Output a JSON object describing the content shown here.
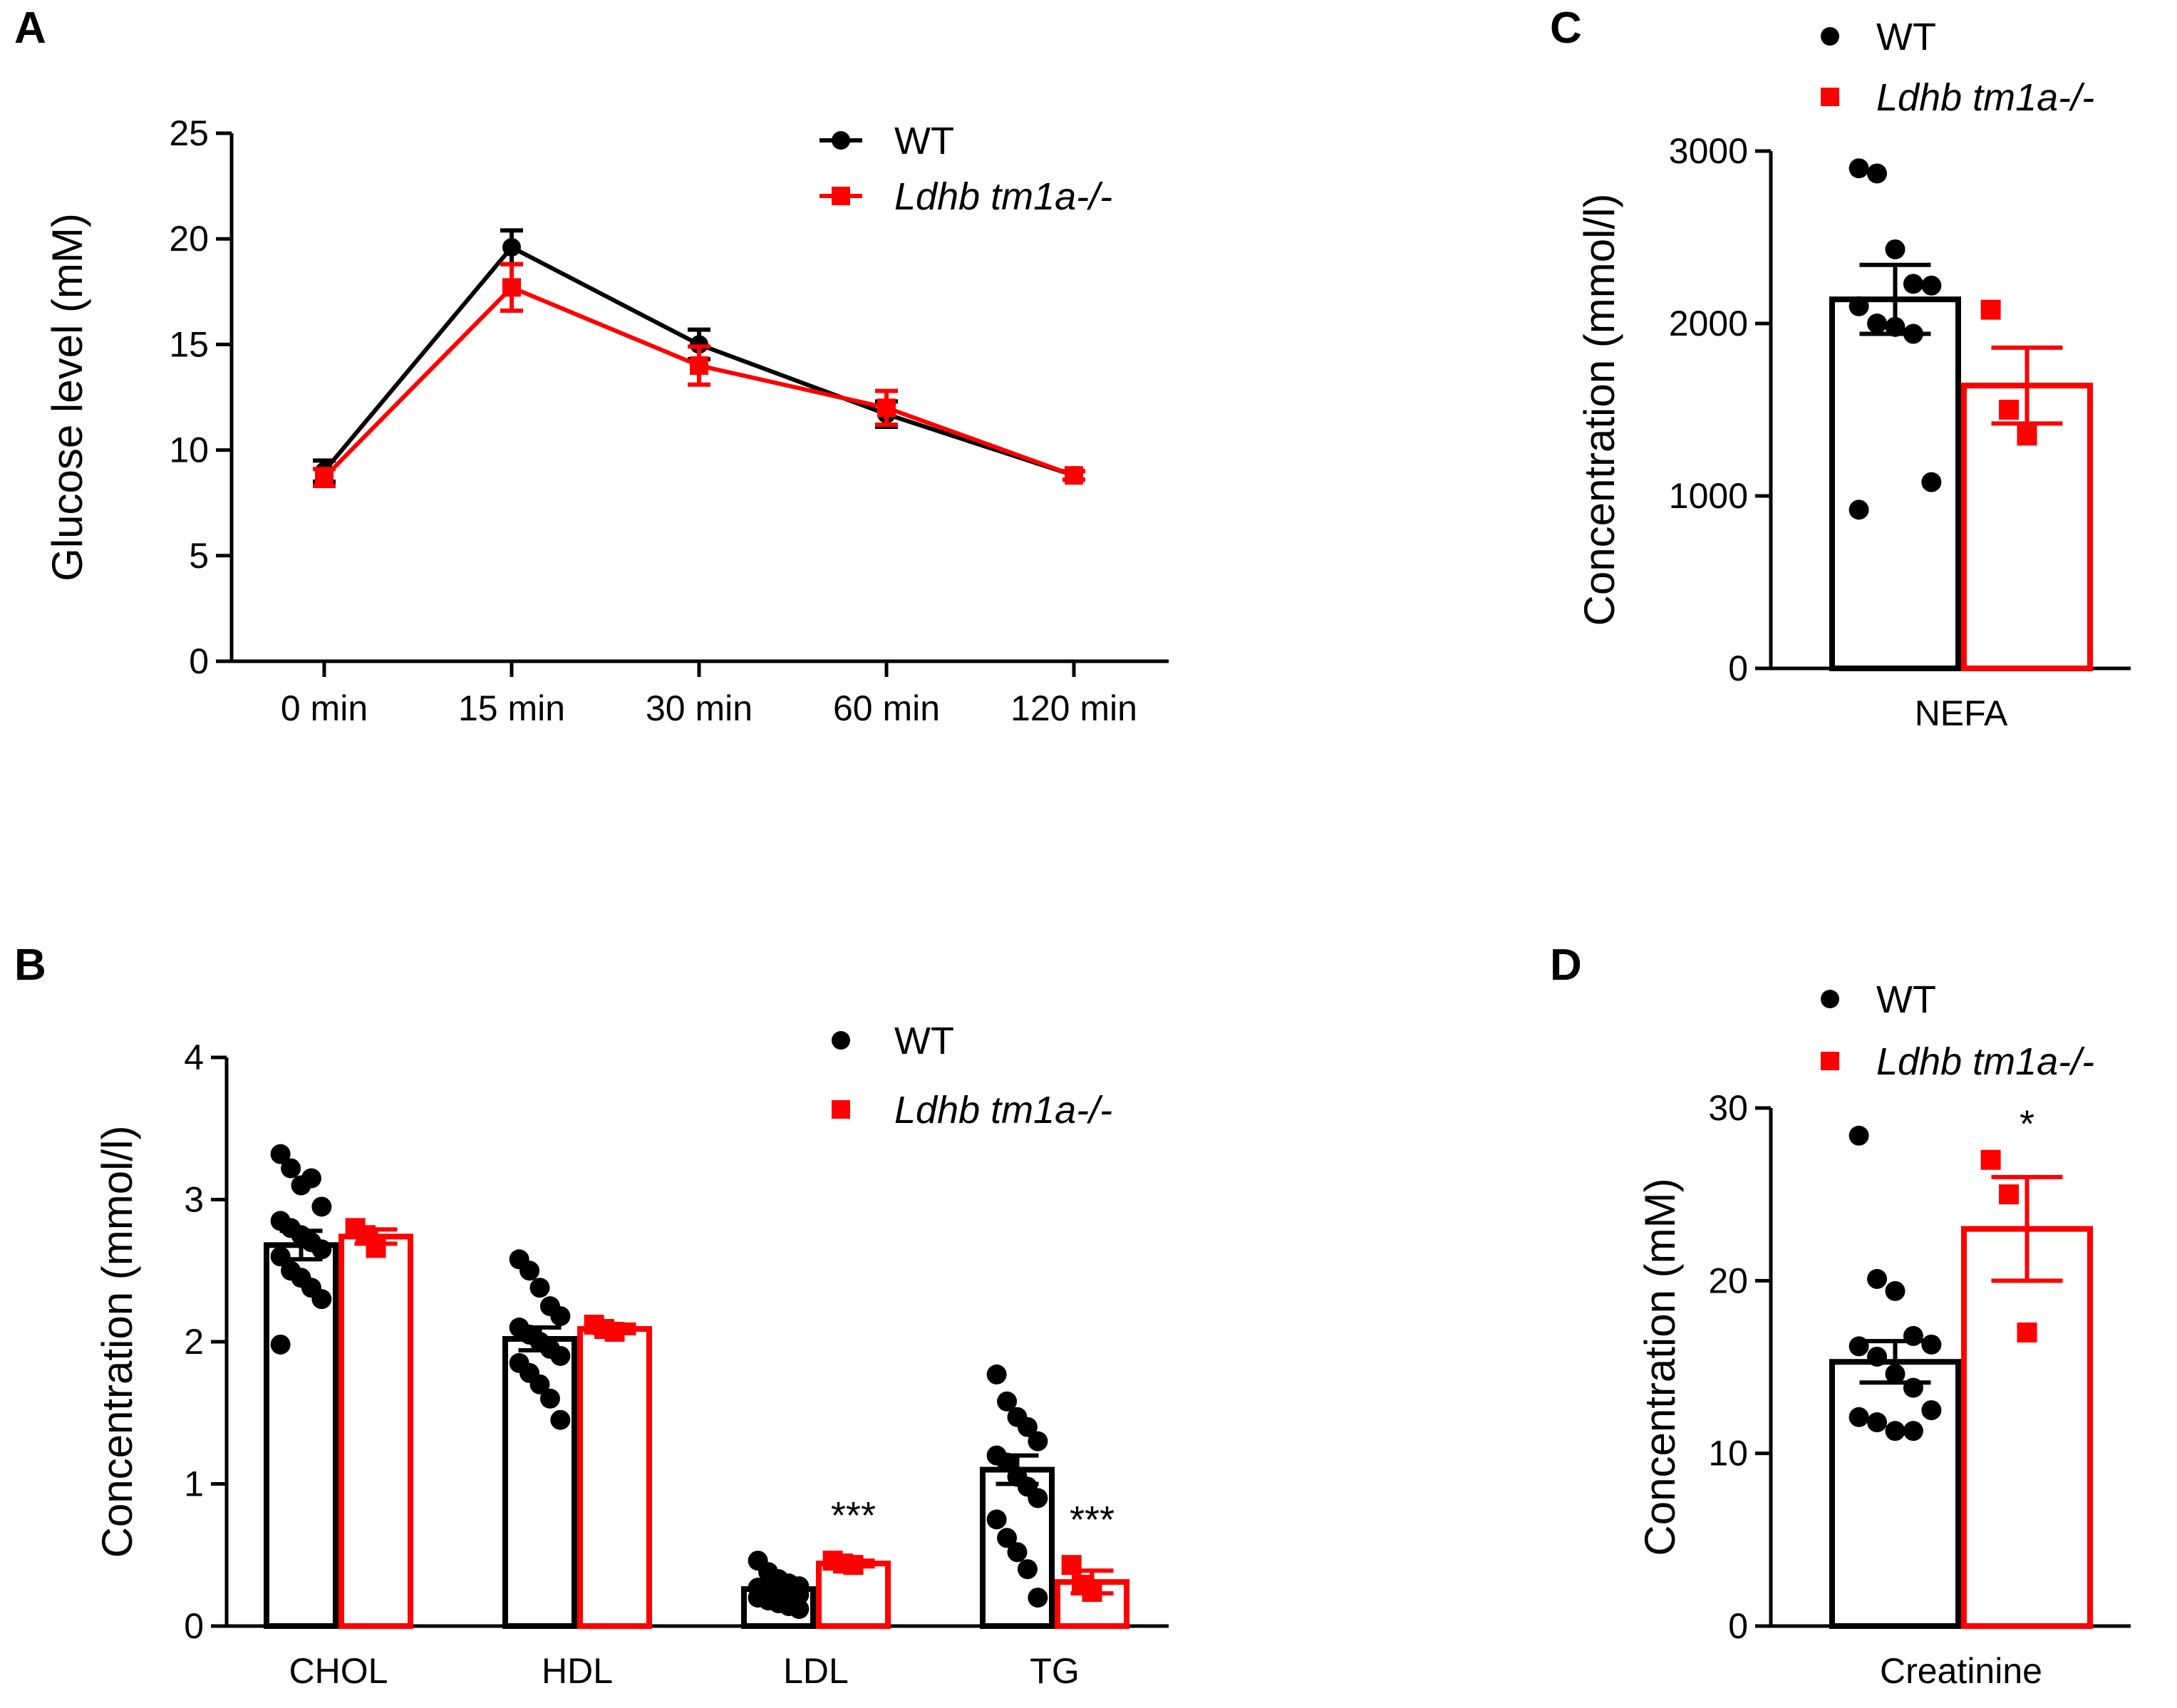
{
  "chart_data": [
    {
      "panel": "A",
      "type": "line",
      "ylabel": "Glucose level (mM)",
      "xlabel": "",
      "categories": [
        "0 min",
        "15 min",
        "30 min",
        "60 min",
        "120 min"
      ],
      "ylim": [
        0,
        25
      ],
      "yticks": [
        0,
        5,
        10,
        15,
        20,
        25
      ],
      "legend_position": "top-right",
      "series": [
        {
          "name": "WT",
          "color": "#000000",
          "marker": "circle",
          "values": [
            9.0,
            19.6,
            15.0,
            11.7,
            8.8
          ],
          "errors": [
            0.5,
            0.8,
            0.7,
            0.6,
            0.2
          ]
        },
        {
          "name": "Ldhb tm1a-/-",
          "color": "#ff0000",
          "marker": "square",
          "values": [
            8.7,
            17.7,
            14.0,
            12.0,
            8.8
          ],
          "errors": [
            0.4,
            1.1,
            0.9,
            0.8,
            0.2
          ]
        }
      ]
    },
    {
      "panel": "B",
      "type": "bar",
      "ylabel": "Concentration (mmol/l)",
      "xlabel": "",
      "categories": [
        "CHOL",
        "HDL",
        "LDL",
        "TG"
      ],
      "ylim": [
        0,
        4
      ],
      "yticks": [
        0,
        1,
        2,
        3,
        4
      ],
      "legend_position": "top-right",
      "annotations": [
        "",
        "",
        "***",
        "***"
      ],
      "series": [
        {
          "name": "WT",
          "color": "#000000",
          "marker": "circle",
          "values": [
            2.68,
            2.02,
            0.26,
            1.1
          ],
          "errors": [
            0.1,
            0.08,
            0.03,
            0.1
          ],
          "points": [
            [
              3.32,
              3.22,
              3.1,
              3.15,
              2.95,
              2.85,
              2.8,
              2.75,
              2.7,
              2.65,
              2.6,
              2.5,
              2.45,
              2.38,
              2.3,
              1.98
            ],
            [
              2.58,
              2.5,
              2.38,
              2.25,
              2.18,
              2.1,
              2.05,
              2.0,
              1.95,
              1.9,
              1.85,
              1.78,
              1.7,
              1.6,
              1.45
            ],
            [
              0.46,
              0.38,
              0.33,
              0.3,
              0.28,
              0.27,
              0.26,
              0.25,
              0.24,
              0.22,
              0.2,
              0.18,
              0.16,
              0.14,
              0.12
            ],
            [
              1.77,
              1.58,
              1.47,
              1.4,
              1.3,
              1.2,
              1.15,
              1.05,
              0.98,
              0.9,
              0.75,
              0.62,
              0.52,
              0.4,
              0.2
            ]
          ]
        },
        {
          "name": "Ldhb tm1a-/-",
          "color": "#ff0000",
          "marker": "square",
          "values": [
            2.74,
            2.09,
            0.44,
            0.31
          ],
          "errors": [
            0.05,
            0.03,
            0.02,
            0.08
          ],
          "points": [
            [
              2.8,
              2.75,
              2.66
            ],
            [
              2.12,
              2.09,
              2.07
            ],
            [
              0.46,
              0.44,
              0.43
            ],
            [
              0.43,
              0.29,
              0.24
            ]
          ]
        }
      ]
    },
    {
      "panel": "C",
      "type": "bar",
      "ylabel": "Concentration (mmol/l)",
      "xlabel": "",
      "categories": [
        "NEFA"
      ],
      "ylim": [
        0,
        3000
      ],
      "yticks": [
        0,
        1000,
        2000,
        3000
      ],
      "legend_position": "top",
      "series": [
        {
          "name": "WT",
          "color": "#000000",
          "marker": "circle",
          "values": [
            2140
          ],
          "errors": [
            200
          ],
          "points": [
            [
              2900,
              2870,
              2430,
              2230,
              2220,
              2100,
              2000,
              1980,
              1940,
              1080,
              920
            ]
          ]
        },
        {
          "name": "Ldhb tm1a-/-",
          "color": "#ff0000",
          "marker": "square",
          "values": [
            1640
          ],
          "errors": [
            220
          ],
          "points": [
            [
              2080,
              1500,
              1350
            ]
          ]
        }
      ]
    },
    {
      "panel": "D",
      "type": "bar",
      "ylabel": "Concentration (mM)",
      "xlabel": "",
      "categories": [
        "Creatinine"
      ],
      "ylim": [
        0,
        30
      ],
      "yticks": [
        0,
        10,
        20,
        30
      ],
      "legend_position": "top",
      "annotations": [
        "*"
      ],
      "series": [
        {
          "name": "WT",
          "color": "#000000",
          "marker": "circle",
          "values": [
            15.3
          ],
          "errors": [
            1.2
          ],
          "points": [
            [
              28.4,
              20.1,
              19.4,
              16.8,
              16.3,
              16.2,
              15.6,
              14.6,
              13.8,
              12.5,
              12.1,
              11.8,
              11.3,
              11.3
            ]
          ]
        },
        {
          "name": "Ldhb tm1a-/-",
          "color": "#ff0000",
          "marker": "square",
          "values": [
            23.0
          ],
          "errors": [
            3.0
          ],
          "points": [
            [
              27.0,
              25.0,
              17.0
            ]
          ]
        }
      ]
    }
  ]
}
